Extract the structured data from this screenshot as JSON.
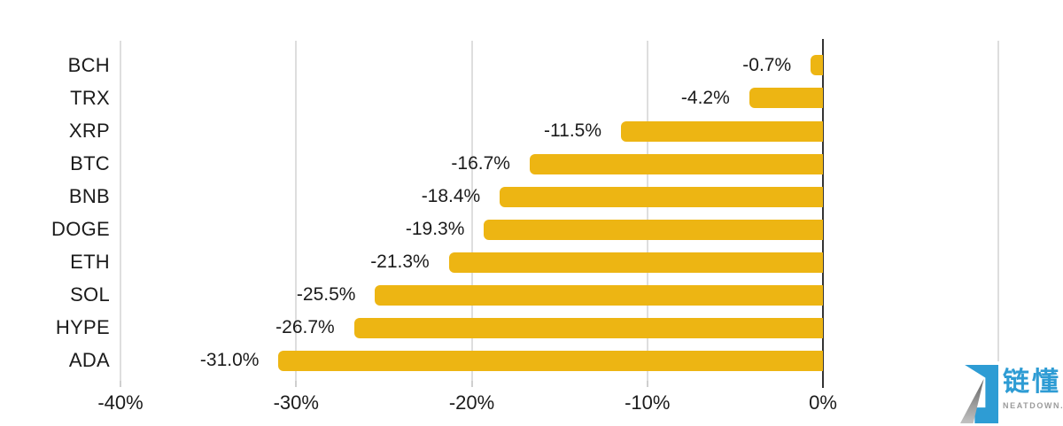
{
  "chart_data": {
    "type": "bar",
    "orientation": "horizontal",
    "title": "",
    "categories": [
      "BCH",
      "TRX",
      "XRP",
      "BTC",
      "BNB",
      "DOGE",
      "ETH",
      "SOL",
      "HYPE",
      "ADA"
    ],
    "values": [
      -0.7,
      -4.2,
      -11.5,
      -16.7,
      -18.4,
      -19.3,
      -21.3,
      -25.5,
      -26.7,
      -31.0
    ],
    "value_labels": [
      "-0.7%",
      "-4.2%",
      "-11.5%",
      "-16.7%",
      "-18.4%",
      "-19.3%",
      "-21.3%",
      "-25.5%",
      "-26.7%",
      "-31.0%"
    ],
    "xlim": [
      -40,
      10
    ],
    "x_ticks": [
      {
        "value": -40,
        "label": "-40%"
      },
      {
        "value": -30,
        "label": "-30%"
      },
      {
        "value": -20,
        "label": "-20%"
      },
      {
        "value": -10,
        "label": "-10%"
      },
      {
        "value": 0,
        "label": "0%"
      },
      {
        "value": 10,
        "label": ""
      }
    ],
    "bar_color": "#EDB513",
    "grid": "vertical-gridlines-on",
    "legend": "none",
    "zero_axis_color": "#333333"
  },
  "watermark": {
    "brand": "链懂",
    "domain": "NEATDOWN.COM",
    "brand_color": "#2E9CD4",
    "domain_color": "#9B9B9B"
  }
}
